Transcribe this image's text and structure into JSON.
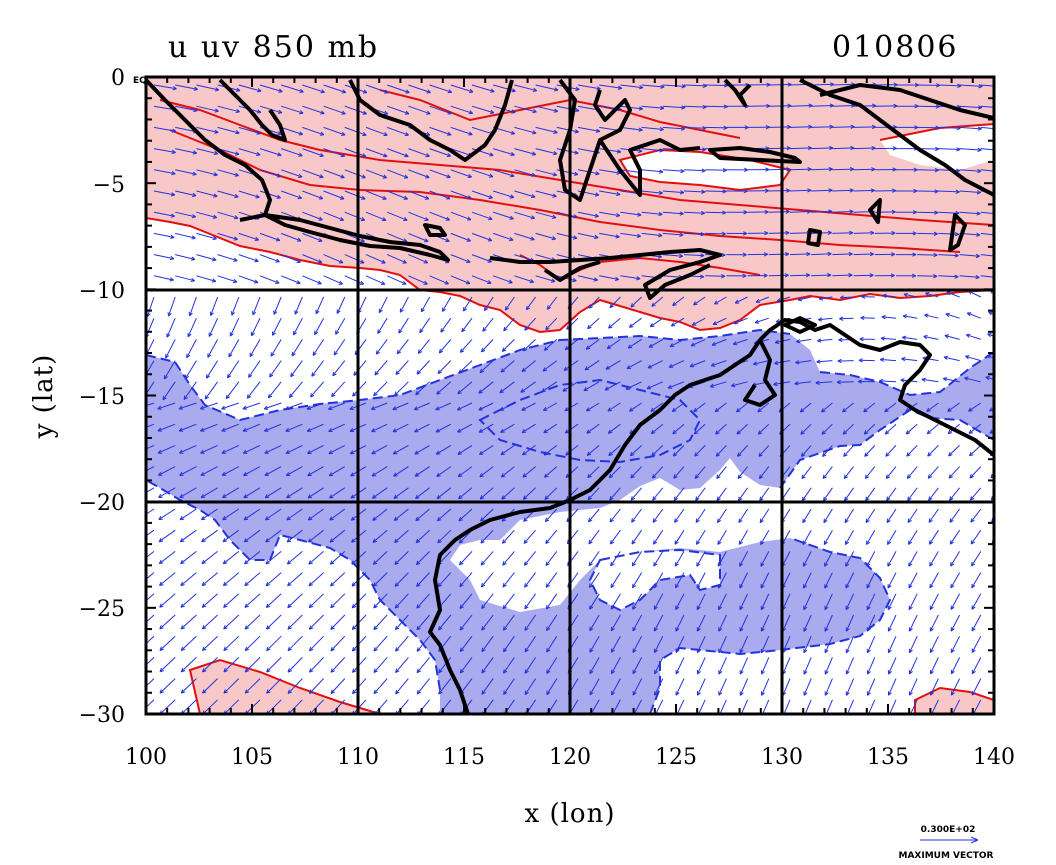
{
  "title_left": "u uv 850 mb",
  "title_right": "010806",
  "corner_label": "EQ",
  "xlabel": "x (lon)",
  "ylabel": "y (lat)",
  "x_ticks": [
    "100",
    "105",
    "110",
    "115",
    "120",
    "125",
    "130",
    "135",
    "140"
  ],
  "y_ticks": [
    "0",
    "−5",
    "−10",
    "−15",
    "−20",
    "−25",
    "−30"
  ],
  "legend": {
    "value": "0.300E+02",
    "label": "MAXIMUM VECTOR"
  },
  "colors": {
    "positive_fill": "#f8c8c8",
    "positive_line": "#e01010",
    "negative_fill": "#aaaaee",
    "negative_line": "#2233dd",
    "vector": "#2233dd",
    "coast": "#000000"
  },
  "map_data": {
    "type": "contour+vector",
    "variable": "u",
    "level_mb": 850,
    "date": "010806",
    "lon_range": [
      100,
      140
    ],
    "lat_range": [
      -30,
      0
    ],
    "grid_lon": [
      110,
      120,
      130
    ],
    "grid_lat": [
      -10,
      -20
    ],
    "max_vector": 30
  }
}
